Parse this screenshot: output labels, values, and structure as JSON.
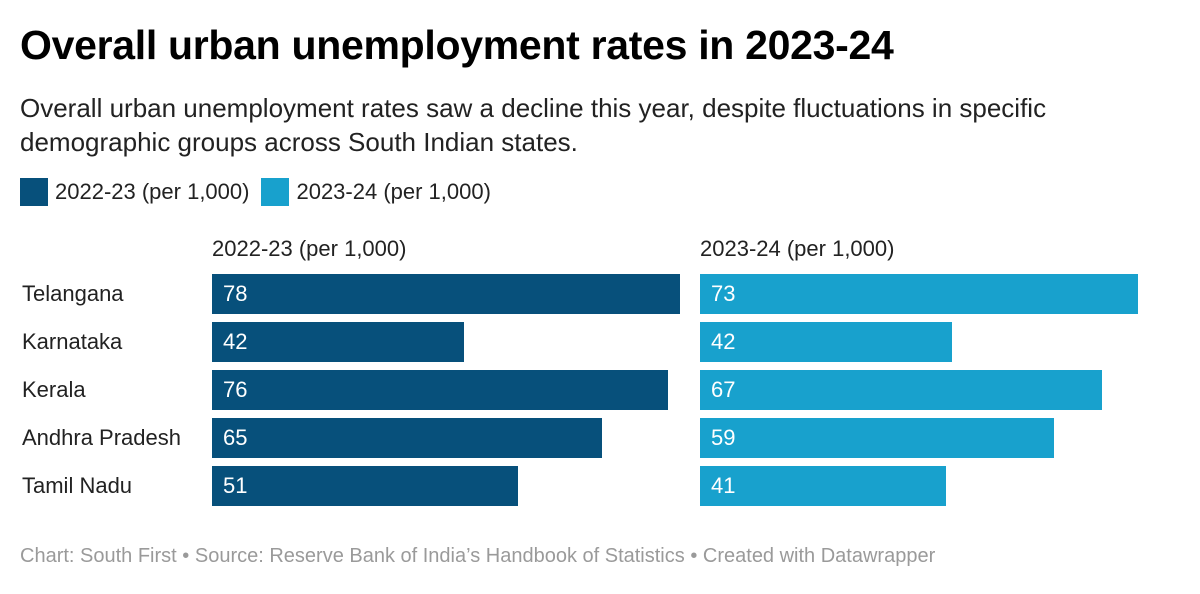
{
  "title": "Overall urban unemployment rates in 2023-24",
  "subtitle": "Overall urban unemployment rates saw a decline this year, despite fluctuations in specific demographic groups across South Indian states.",
  "legend": [
    {
      "label": "2022-23 (per 1,000)",
      "color": "#07507b"
    },
    {
      "label": "2023-24 (per 1,000)",
      "color": "#18a1cd"
    }
  ],
  "footer": {
    "chart": "Chart: South First",
    "source": "Source: Reserve Bank of India’s Handbook of Statistics",
    "created": "Created with Datawrapper",
    "separator": "•"
  },
  "chart_data": {
    "type": "bar",
    "orientation": "horizontal",
    "categories": [
      "Telangana",
      "Karnataka",
      "Kerala",
      "Andhra Pradesh",
      "Tamil Nadu"
    ],
    "series": [
      {
        "name": "2022-23 (per 1,000)",
        "values": [
          78,
          42,
          76,
          65,
          51
        ],
        "color": "#07507b"
      },
      {
        "name": "2023-24 (per 1,000)",
        "values": [
          73,
          42,
          67,
          59,
          41
        ],
        "color": "#18a1cd"
      }
    ]
  }
}
